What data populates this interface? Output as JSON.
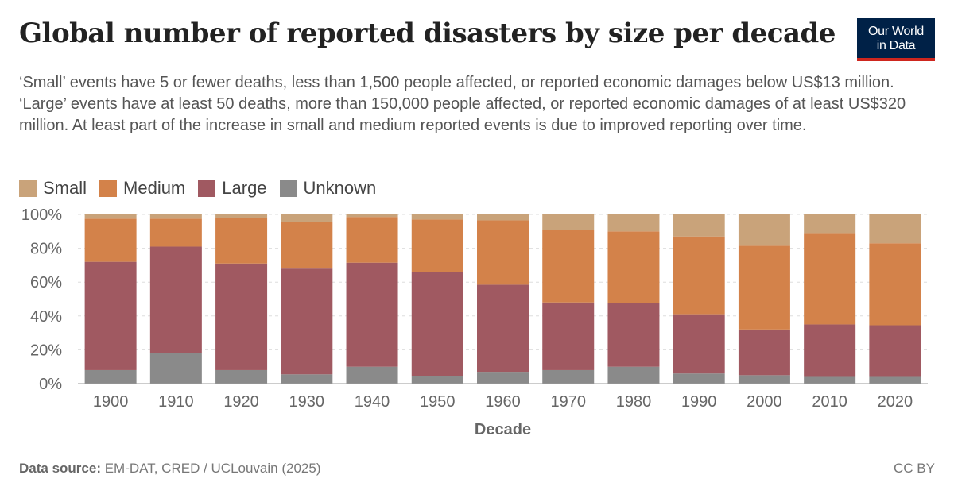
{
  "title": "Global number of reported disasters by size per decade",
  "subtitle": "‘Small’ events have 5 or fewer deaths, less than 1,500 people affected, or reported economic damages below US$13 million. ‘Large’ events have at least 50 deaths, more than 150,000 people affected, or reported economic damages of at least US$320 million. At least part of the increase in small and medium reported events is due to improved reporting over time.",
  "logo": {
    "line1": "Our World",
    "line2": "in Data",
    "bg": "#002147",
    "accent": "#ce261e"
  },
  "footer": {
    "source_label": "Data source:",
    "source_text": "EM-DAT, CRED / UCLouvain (2025)",
    "license": "CC BY"
  },
  "chart_data": {
    "type": "bar",
    "stacked": true,
    "xlabel": "Decade",
    "ylabel": "",
    "categories": [
      "1900",
      "1910",
      "1920",
      "1930",
      "1940",
      "1950",
      "1960",
      "1970",
      "1980",
      "1990",
      "2000",
      "2010",
      "2020"
    ],
    "yticks": [
      "0%",
      "20%",
      "40%",
      "60%",
      "80%",
      "100%"
    ],
    "ylim": [
      0,
      100
    ],
    "grid": true,
    "legend_position": "top-left",
    "series": [
      {
        "name": "Unknown",
        "color": "#8a8a8a",
        "values": [
          8,
          18,
          8,
          5.5,
          10,
          4.5,
          7,
          8,
          10,
          6,
          5,
          4,
          4
        ]
      },
      {
        "name": "Large",
        "color": "#a05961",
        "values": [
          64,
          63,
          63,
          62.5,
          61.5,
          61.5,
          51.5,
          40,
          37.5,
          35,
          27,
          31,
          30.5
        ]
      },
      {
        "name": "Medium",
        "color": "#d3824a",
        "values": [
          25.5,
          16.5,
          27,
          27.5,
          27,
          31,
          38,
          43,
          42.5,
          46,
          49.5,
          54,
          48.5
        ]
      },
      {
        "name": "Small",
        "color": "#c9a37a",
        "values": [
          2.5,
          2.5,
          2,
          4.5,
          1.5,
          3,
          3.5,
          9,
          10,
          13,
          18.5,
          11,
          17
        ]
      }
    ]
  }
}
